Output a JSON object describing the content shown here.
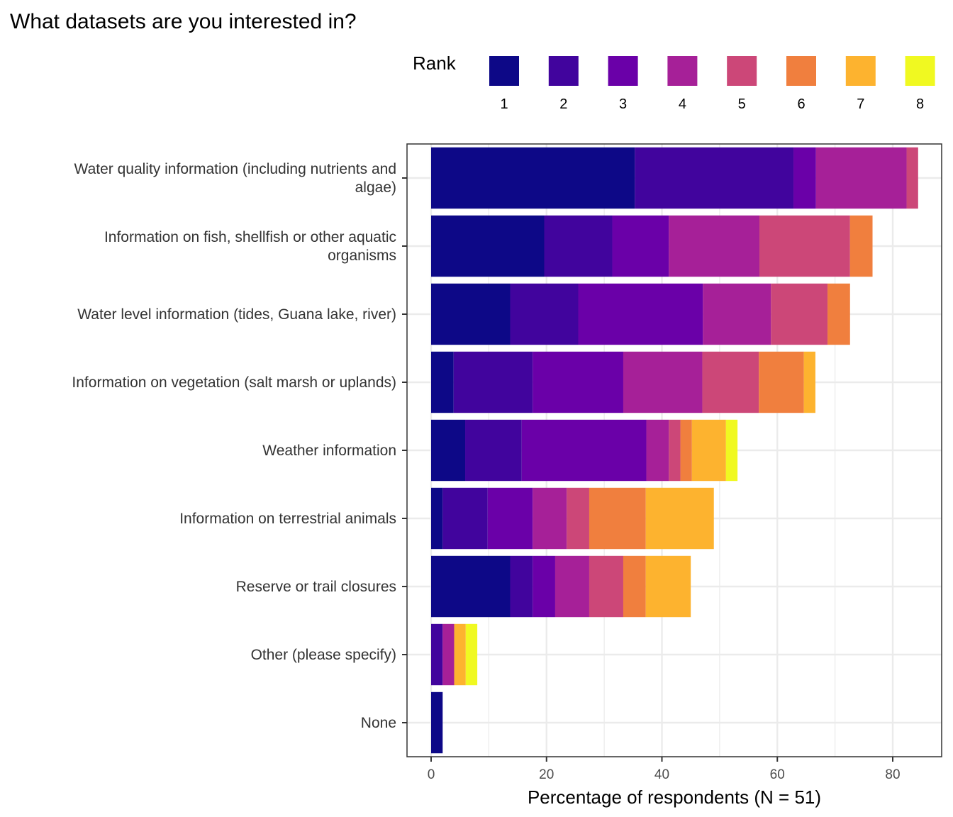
{
  "chart_data": {
    "type": "bar",
    "orientation": "horizontal",
    "stacked": true,
    "title": "What datasets are you interested in?",
    "xlabel": "Percentage of respondents (N = 51)",
    "ylabel": "",
    "xlim": [
      -4,
      88
    ],
    "xticks": [
      0,
      20,
      40,
      60,
      80
    ],
    "grid": true,
    "legend": {
      "title": "Rank",
      "position": "top-right"
    },
    "categories": [
      "Water quality information (including nutrients and\nalgae)",
      "Information on fish, shellfish or other aquatic\norganisms",
      "Water level information (tides, Guana lake, river)",
      "Information on vegetation (salt marsh or uplands)",
      "Weather information",
      "Information on terrestrial animals",
      "Reserve or trail closures",
      "Other (please specify)",
      "None"
    ],
    "series": [
      {
        "name": "1",
        "color": "#0d0887",
        "values": [
          35.3,
          19.6,
          13.7,
          3.9,
          5.9,
          2.0,
          13.7,
          0,
          2.0
        ]
      },
      {
        "name": "2",
        "color": "#41049d",
        "values": [
          27.5,
          11.8,
          11.8,
          13.7,
          9.8,
          7.8,
          3.9,
          2.0,
          0
        ]
      },
      {
        "name": "3",
        "color": "#6a00a8",
        "values": [
          3.9,
          9.8,
          21.6,
          15.7,
          21.6,
          7.8,
          3.9,
          0,
          0
        ]
      },
      {
        "name": "4",
        "color": "#a62098",
        "values": [
          15.7,
          15.7,
          11.8,
          13.7,
          3.9,
          5.9,
          5.9,
          2.0,
          0
        ]
      },
      {
        "name": "5",
        "color": "#cc4778",
        "values": [
          2.0,
          15.7,
          9.8,
          9.8,
          2.0,
          3.9,
          5.9,
          0,
          0
        ]
      },
      {
        "name": "6",
        "color": "#f07f3e",
        "values": [
          0,
          3.9,
          3.9,
          7.8,
          2.0,
          9.8,
          3.9,
          0,
          0
        ]
      },
      {
        "name": "7",
        "color": "#fdb32f",
        "values": [
          0,
          0,
          0,
          2.0,
          5.9,
          11.8,
          7.8,
          2.0,
          0
        ]
      },
      {
        "name": "8",
        "color": "#f0f921",
        "values": [
          0,
          0,
          0,
          0,
          2.0,
          0,
          0,
          2.0,
          0
        ]
      }
    ]
  }
}
